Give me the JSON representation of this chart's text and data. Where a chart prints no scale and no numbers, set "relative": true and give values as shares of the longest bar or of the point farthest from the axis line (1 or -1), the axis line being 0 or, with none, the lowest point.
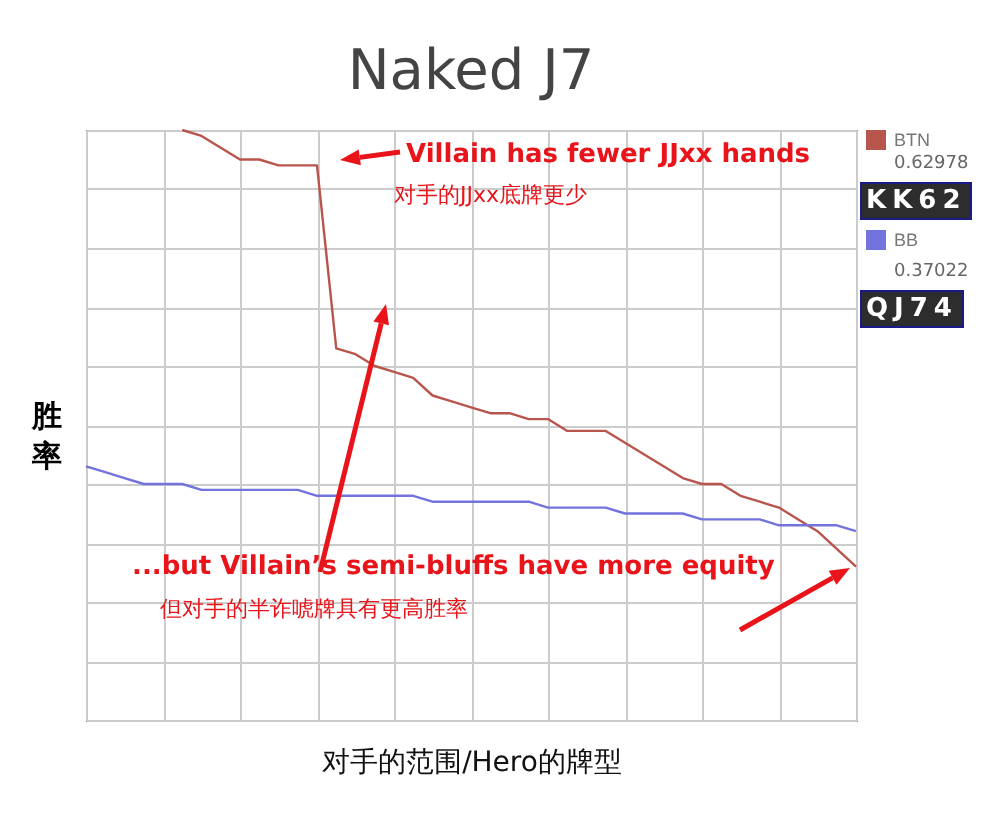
{
  "chart_data": {
    "type": "line",
    "title": "Naked J7",
    "xlabel": "对手的范围/Hero的牌型",
    "ylabel": "胜率",
    "relative": true,
    "grid": true,
    "legend": "right",
    "categories": [
      null,
      null,
      null,
      null,
      null,
      null,
      null,
      null,
      null,
      null,
      null,
      null,
      null,
      null,
      null,
      null,
      null,
      null,
      null,
      null,
      null,
      null,
      null,
      null,
      null,
      null,
      null,
      null,
      null,
      null,
      null,
      null,
      null,
      null,
      null,
      null,
      null,
      null,
      null,
      null,
      null
    ],
    "series": [
      {
        "name": "BTN",
        "color": "#b8554d",
        "values": [
          null,
          null,
          null,
          null,
          null,
          1.0,
          0.99,
          0.97,
          0.95,
          0.95,
          0.94,
          0.94,
          0.94,
          0.63,
          0.62,
          0.6,
          0.59,
          0.58,
          0.55,
          0.54,
          0.53,
          0.52,
          0.52,
          0.51,
          0.51,
          0.49,
          0.49,
          0.49,
          0.47,
          0.45,
          0.43,
          0.41,
          0.4,
          0.4,
          0.38,
          0.37,
          0.36,
          0.34,
          0.32,
          0.29,
          0.26
        ]
      },
      {
        "name": "BB",
        "color": "#7373dd",
        "values": [
          0.43,
          0.42,
          0.41,
          0.4,
          0.4,
          0.4,
          0.39,
          0.39,
          0.39,
          0.39,
          0.39,
          0.39,
          0.38,
          0.38,
          0.38,
          0.38,
          0.38,
          0.38,
          0.37,
          0.37,
          0.37,
          0.37,
          0.37,
          0.37,
          0.36,
          0.36,
          0.36,
          0.36,
          0.35,
          0.35,
          0.35,
          0.35,
          0.34,
          0.34,
          0.34,
          0.34,
          0.33,
          0.33,
          0.33,
          0.33,
          0.32
        ]
      }
    ],
    "annotations": [
      "Villain has fewer JJxx hands",
      "对手的JJxx底牌更少",
      "...but Villain’s semi-bluffs have more equity",
      "但对手的半诈唬牌具有更高胜率",
      "0.62978",
      "KK62",
      "0.37022",
      "QJ74"
    ]
  }
}
